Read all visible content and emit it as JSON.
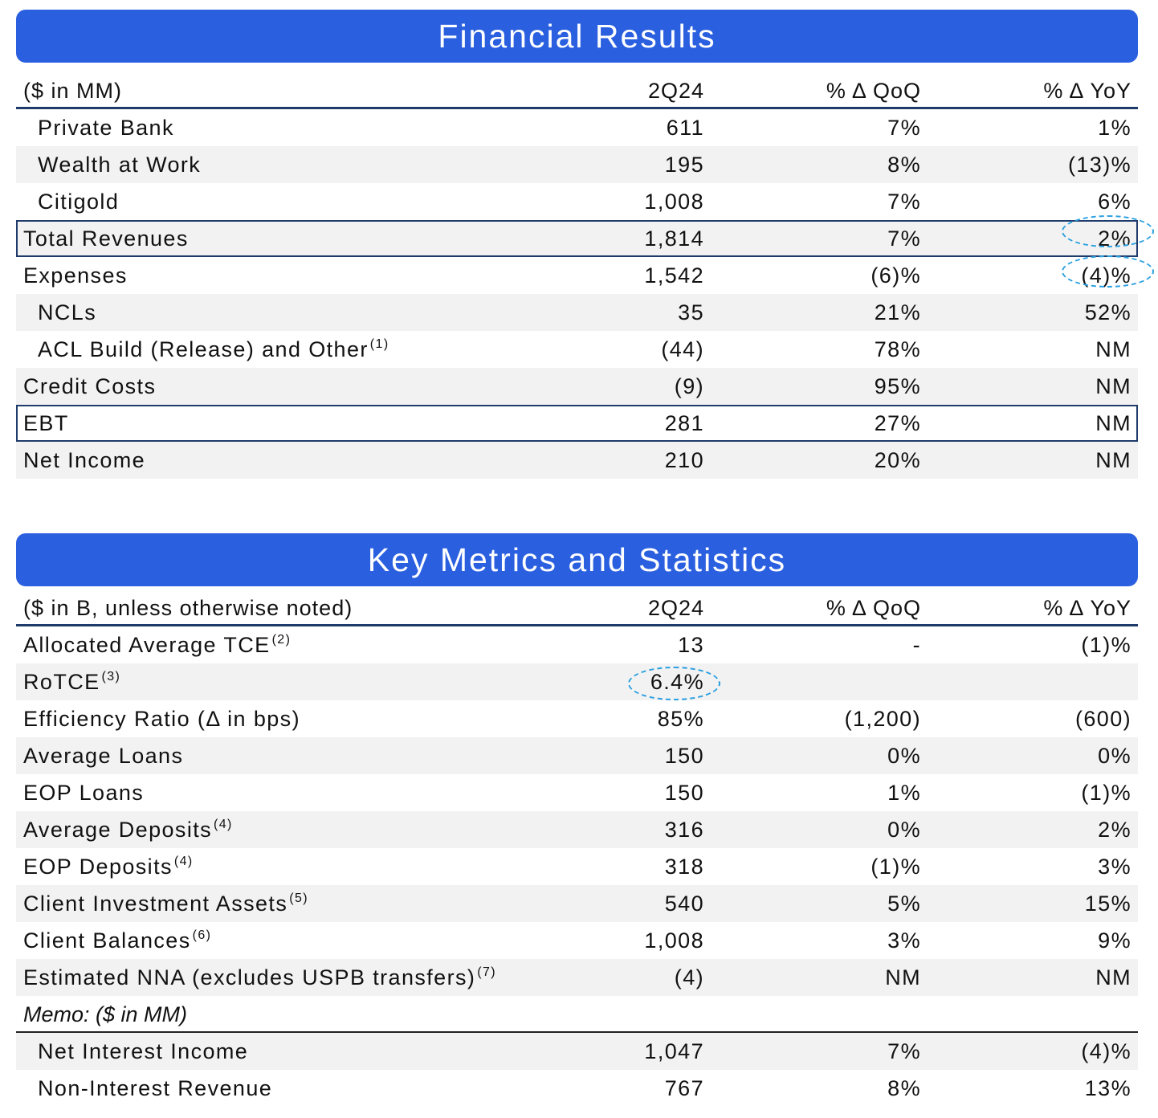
{
  "financial": {
    "title": "Financial Results",
    "header": {
      "label": "($ in MM)",
      "c1": "2Q24",
      "c2": "% Δ QoQ",
      "c3": "% Δ YoY"
    },
    "rows": [
      {
        "label": "Private Bank",
        "sup": "",
        "c1": "611",
        "c2": "7%",
        "c3": "1%"
      },
      {
        "label": "Wealth at Work",
        "sup": "",
        "c1": "195",
        "c2": "8%",
        "c3": "(13)%"
      },
      {
        "label": "Citigold",
        "sup": "",
        "c1": "1,008",
        "c2": "7%",
        "c3": "6%"
      },
      {
        "label": "Total Revenues",
        "sup": "",
        "c1": "1,814",
        "c2": "7%",
        "c3": "2%"
      },
      {
        "label": "Expenses",
        "sup": "",
        "c1": "1,542",
        "c2": "(6)%",
        "c3": "(4)%"
      },
      {
        "label": "NCLs",
        "sup": "",
        "c1": "35",
        "c2": "21%",
        "c3": "52%"
      },
      {
        "label": "ACL Build (Release) and Other",
        "sup": "(1)",
        "c1": "(44)",
        "c2": "78%",
        "c3": "NM"
      },
      {
        "label": "Credit Costs",
        "sup": "",
        "c1": "(9)",
        "c2": "95%",
        "c3": "NM"
      },
      {
        "label": "EBT",
        "sup": "",
        "c1": "281",
        "c2": "27%",
        "c3": "NM"
      },
      {
        "label": "Net Income",
        "sup": "",
        "c1": "210",
        "c2": "20%",
        "c3": "NM"
      }
    ]
  },
  "metrics": {
    "title": "Key Metrics and Statistics",
    "header": {
      "label": "($ in B, unless otherwise noted)",
      "c1": "2Q24",
      "c2": "% Δ QoQ",
      "c3": "% Δ YoY"
    },
    "rows": [
      {
        "label": "Allocated Average TCE",
        "sup": "(2)",
        "c1": "13",
        "c2": "-",
        "c3": "(1)%"
      },
      {
        "label": "RoTCE",
        "sup": "(3)",
        "c1": "6.4%",
        "c2": "",
        "c3": ""
      },
      {
        "label": "Efficiency Ratio (Δ in bps)",
        "sup": "",
        "c1": "85%",
        "c2": "(1,200)",
        "c3": "(600)"
      },
      {
        "label": "Average Loans",
        "sup": "",
        "c1": "150",
        "c2": "0%",
        "c3": "0%"
      },
      {
        "label": "EOP Loans",
        "sup": "",
        "c1": "150",
        "c2": "1%",
        "c3": "(1)%"
      },
      {
        "label": "Average Deposits",
        "sup": "(4)",
        "c1": "316",
        "c2": "0%",
        "c3": "2%"
      },
      {
        "label": "EOP Deposits",
        "sup": "(4)",
        "c1": "318",
        "c2": "(1)%",
        "c3": "3%"
      },
      {
        "label": "Client Investment Assets",
        "sup": "(5)",
        "c1": "540",
        "c2": "5%",
        "c3": "15%"
      },
      {
        "label": "Client Balances",
        "sup": "(6)",
        "c1": "1,008",
        "c2": "3%",
        "c3": "9%"
      },
      {
        "label": "Estimated NNA (excludes USPB transfers)",
        "sup": "(7)",
        "c1": "(4)",
        "c2": "NM",
        "c3": "NM"
      }
    ],
    "memo": "Memo: ($ in MM)",
    "memo_rows": [
      {
        "label": "Net Interest Income",
        "c1": "1,047",
        "c2": "7%",
        "c3": "(4)%"
      },
      {
        "label": "Non-Interest Revenue",
        "c1": "767",
        "c2": "8%",
        "c3": "13%"
      }
    ]
  },
  "colors": {
    "banner": "#2a5fe0",
    "rule": "#1f3b6b",
    "highlight_oval": "#2aa0e0",
    "row_shade": "#f2f2f2"
  }
}
